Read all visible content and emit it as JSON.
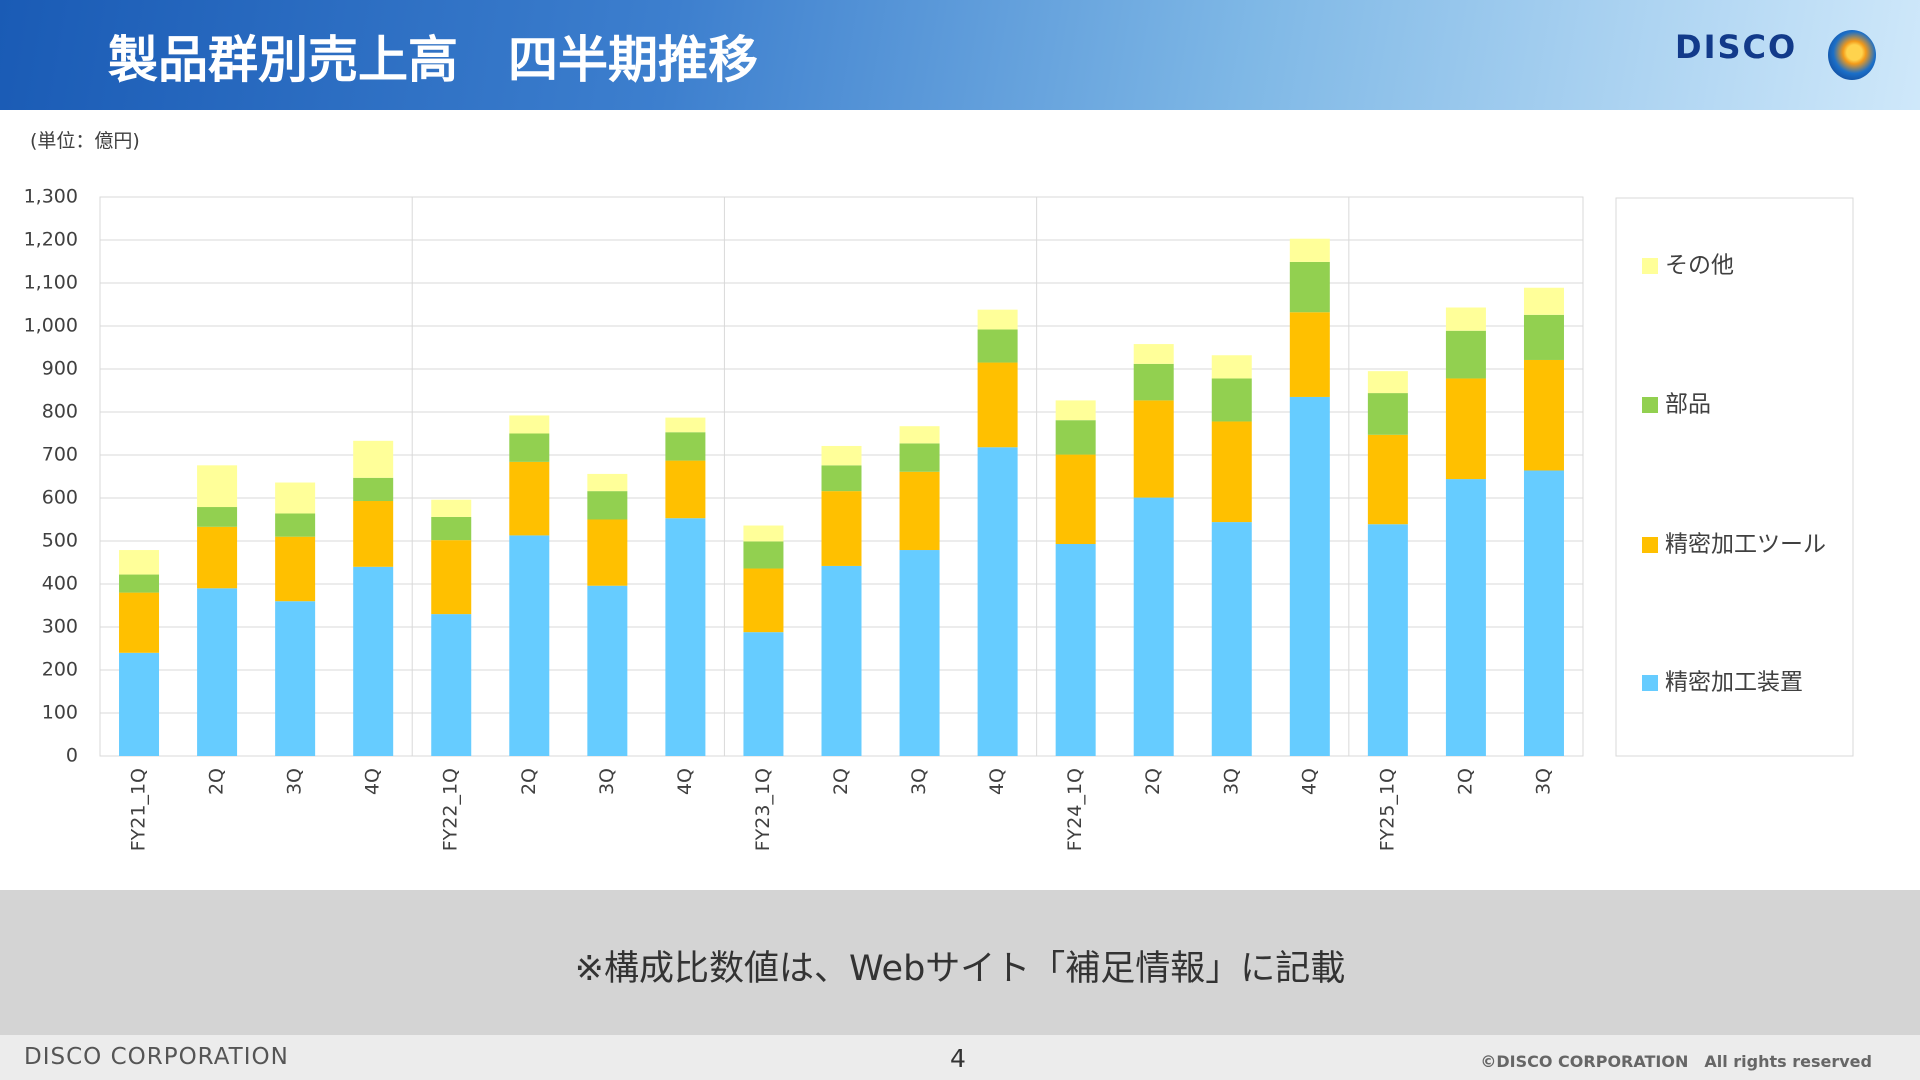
{
  "header": {
    "title": "製品群別売上高　四半期推移",
    "logo": "DISCO"
  },
  "unit": "(単位：億円)",
  "chart_data": {
    "type": "stacked_bar",
    "categories": [
      "FY21_1Q",
      "2Q",
      "3Q",
      "4Q",
      "FY22_1Q",
      "2Q",
      "3Q",
      "4Q",
      "FY23_1Q",
      "2Q",
      "3Q",
      "4Q",
      "FY24_1Q",
      "2Q",
      "3Q",
      "4Q",
      "FY25_1Q",
      "2Q",
      "3Q"
    ],
    "series": [
      {
        "name": "精密加工装置",
        "color": "#66ccff",
        "values": [
          240,
          390,
          360,
          440,
          330,
          513,
          396,
          553,
          288,
          442,
          479,
          718,
          493,
          601,
          544,
          835,
          539,
          644,
          664
        ]
      },
      {
        "name": "精密加工ツール",
        "color": "#ffc000",
        "values": [
          140,
          143,
          150,
          153,
          172,
          171,
          154,
          134,
          148,
          174,
          182,
          197,
          208,
          226,
          234,
          197,
          208,
          234,
          257
        ]
      },
      {
        "name": "部品",
        "color": "#92d050",
        "values": [
          42,
          46,
          54,
          54,
          54,
          66,
          66,
          66,
          63,
          60,
          66,
          77,
          80,
          85,
          100,
          117,
          97,
          111,
          105
        ]
      },
      {
        "name": "その他",
        "color": "#ffff99",
        "values": [
          57,
          97,
          72,
          86,
          40,
          42,
          40,
          34,
          37,
          45,
          40,
          46,
          46,
          46,
          54,
          54,
          51,
          54,
          63
        ]
      }
    ],
    "ylim": [
      0,
      1300
    ],
    "yticks": [
      0,
      100,
      200,
      300,
      400,
      500,
      600,
      700,
      800,
      900,
      {
        "value": 1000,
        "label": "1,000"
      },
      {
        "value": 1100,
        "label": "1,100"
      },
      {
        "value": 1200,
        "label": "1,200"
      },
      {
        "value": 1300,
        "label": "1,300"
      }
    ],
    "grid": true,
    "legend": "right"
  },
  "note": "※構成比数値は、Webサイト「補足情報」に記載",
  "footer": {
    "company": "DISCO CORPORATION",
    "page": "4",
    "copyright": "©DISCO CORPORATION　All rights reserved"
  }
}
